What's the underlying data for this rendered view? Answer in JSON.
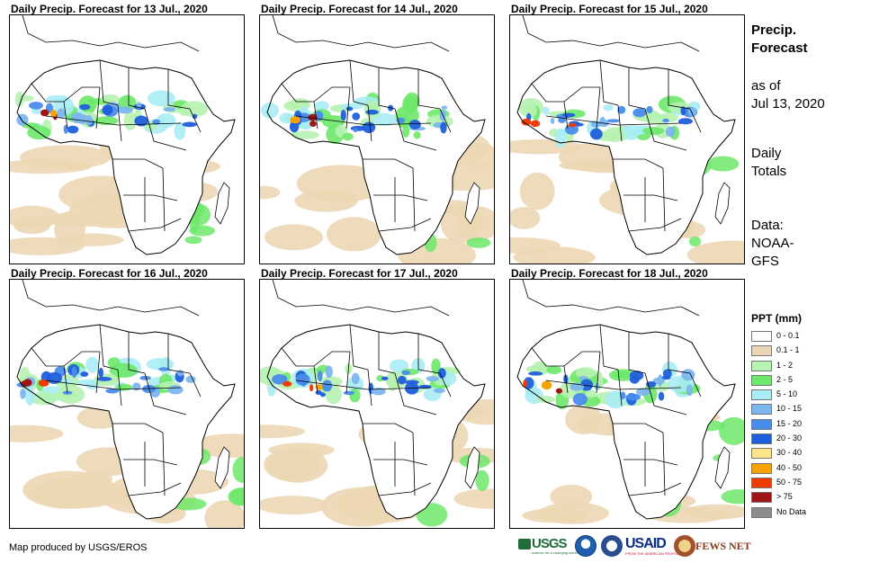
{
  "panels": [
    {
      "title": "Daily Precip. Forecast for 13 Jul., 2020"
    },
    {
      "title": "Daily Precip. Forecast for 14 Jul., 2020"
    },
    {
      "title": "Daily Precip. Forecast for 15 Jul., 2020"
    },
    {
      "title": "Daily Precip. Forecast for 16 Jul., 2020"
    },
    {
      "title": "Daily Precip. Forecast for 17 Jul., 2020"
    },
    {
      "title": "Daily Precip. Forecast for 18 Jul., 2020"
    }
  ],
  "sidebar": {
    "title_line1": "Precip.",
    "title_line2": "Forecast",
    "asof_line1": "as of",
    "asof_line2": "Jul 13, 2020",
    "daily_line1": "Daily",
    "daily_line2": "Totals",
    "source_line1": "Data:",
    "source_line2": "NOAA-",
    "source_line3": "GFS"
  },
  "legend": {
    "title": "PPT (mm)",
    "items": [
      {
        "label": "0 - 0.1",
        "color": "#ffffff"
      },
      {
        "label": "0.1 - 1",
        "color": "#ecd7b4"
      },
      {
        "label": "1 - 2",
        "color": "#b6f2b0"
      },
      {
        "label": "2 - 5",
        "color": "#6ee86a"
      },
      {
        "label": "5 - 10",
        "color": "#a9ecf4"
      },
      {
        "label": "10 - 15",
        "color": "#7cb6ee"
      },
      {
        "label": "15 - 20",
        "color": "#4a8cec"
      },
      {
        "label": "20 - 30",
        "color": "#1f5fdc"
      },
      {
        "label": "30 - 40",
        "color": "#fde48a"
      },
      {
        "label": "40 - 50",
        "color": "#f5a300"
      },
      {
        "label": "50 - 75",
        "color": "#f03c00"
      },
      {
        "label": "> 75",
        "color": "#a01515"
      },
      {
        "label": "No Data",
        "color": "#8c8c8c"
      }
    ]
  },
  "footer": {
    "credit": "Map produced by USGS/EROS"
  },
  "logos": {
    "usgs": "USGS",
    "usgs_tagline": "science for a changing world",
    "usaid": "USAID",
    "usaid_tagline": "FROM THE AMERICAN PEOPLE",
    "fews": "FEWS NET"
  }
}
